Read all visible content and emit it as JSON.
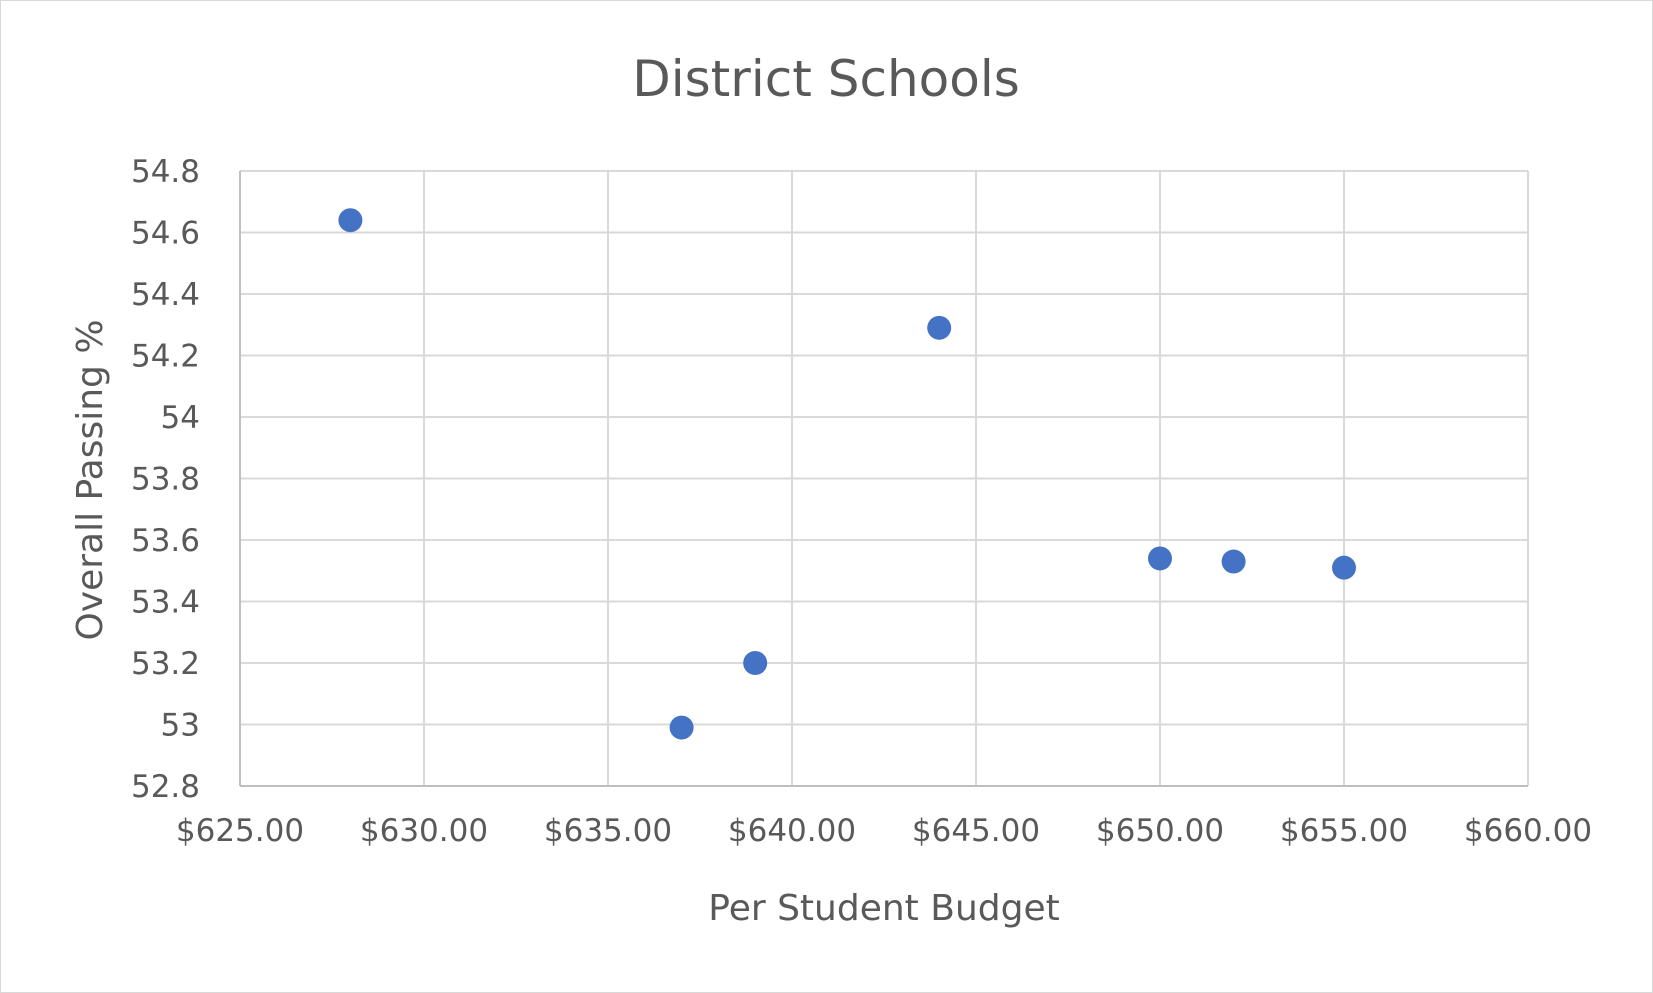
{
  "chart_data": {
    "type": "scatter",
    "title": "District Schools",
    "xlabel": "Per Student Budget",
    "ylabel": "Overall Passing %",
    "xlim": [
      625,
      660
    ],
    "ylim": [
      52.8,
      54.8
    ],
    "x_ticks": [
      625,
      630,
      635,
      640,
      645,
      650,
      655,
      660
    ],
    "x_tick_labels": [
      "$625.00",
      "$630.00",
      "$635.00",
      "$640.00",
      "$645.00",
      "$650.00",
      "$655.00",
      "$660.00"
    ],
    "y_ticks": [
      52.8,
      53,
      53.2,
      53.4,
      53.6,
      53.8,
      54,
      54.2,
      54.4,
      54.6,
      54.8
    ],
    "y_tick_labels": [
      "52.8",
      "53",
      "53.2",
      "53.4",
      "53.6",
      "53.8",
      "54",
      "54.2",
      "54.4",
      "54.6",
      "54.8"
    ],
    "grid": true,
    "legend": "none",
    "marker_color": "#4472c4",
    "series": [
      {
        "points": [
          {
            "x": 628,
            "y": 54.64
          },
          {
            "x": 637,
            "y": 52.99
          },
          {
            "x": 639,
            "y": 53.2
          },
          {
            "x": 644,
            "y": 54.29
          },
          {
            "x": 650,
            "y": 53.54
          },
          {
            "x": 652,
            "y": 53.53
          },
          {
            "x": 655,
            "y": 53.51
          }
        ]
      }
    ]
  }
}
